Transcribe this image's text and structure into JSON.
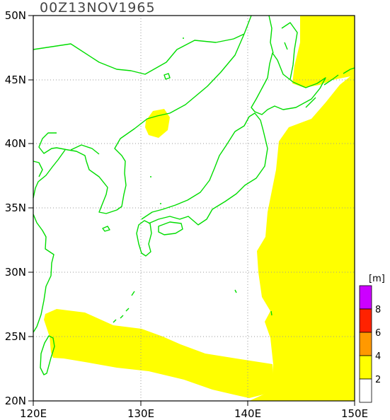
{
  "title": "00Z13NOV1965",
  "map": {
    "lon_range": [
      120,
      150
    ],
    "lat_range": [
      20,
      50
    ],
    "x_ticks": [
      "120E",
      "130E",
      "140E",
      "150E"
    ],
    "y_ticks": [
      "20N",
      "25N",
      "30N",
      "35N",
      "40N",
      "45N",
      "50N"
    ],
    "gridlines": true,
    "coastline_color": "#00dd00",
    "fill_color_2_4m": "#ffff00"
  },
  "colorbar": {
    "unit": "[m]",
    "labels": [
      "2",
      "4",
      "6",
      "8"
    ],
    "colors": [
      "#ffffff",
      "#ffff00",
      "#ff9900",
      "#ff2200",
      "#cc00ff"
    ]
  },
  "chart_data": {
    "type": "heatmap",
    "title": "00Z13NOV1965",
    "xlabel": "",
    "ylabel": "",
    "xlim": [
      120,
      150
    ],
    "ylim": [
      20,
      50
    ],
    "levels": [
      2,
      4,
      6,
      8
    ],
    "regions": [
      {
        "level": "2-4 m",
        "area": "east of Japan, from 50N down to 20N, east of ~143-149E"
      },
      {
        "level": "2-4 m",
        "area": "band from Taiwan (~121E, 25-27N) east to ~149E, 20-24N"
      },
      {
        "level": "2-4 m",
        "area": "small patch in East Korea Bay (~131E, 41N)"
      }
    ]
  }
}
